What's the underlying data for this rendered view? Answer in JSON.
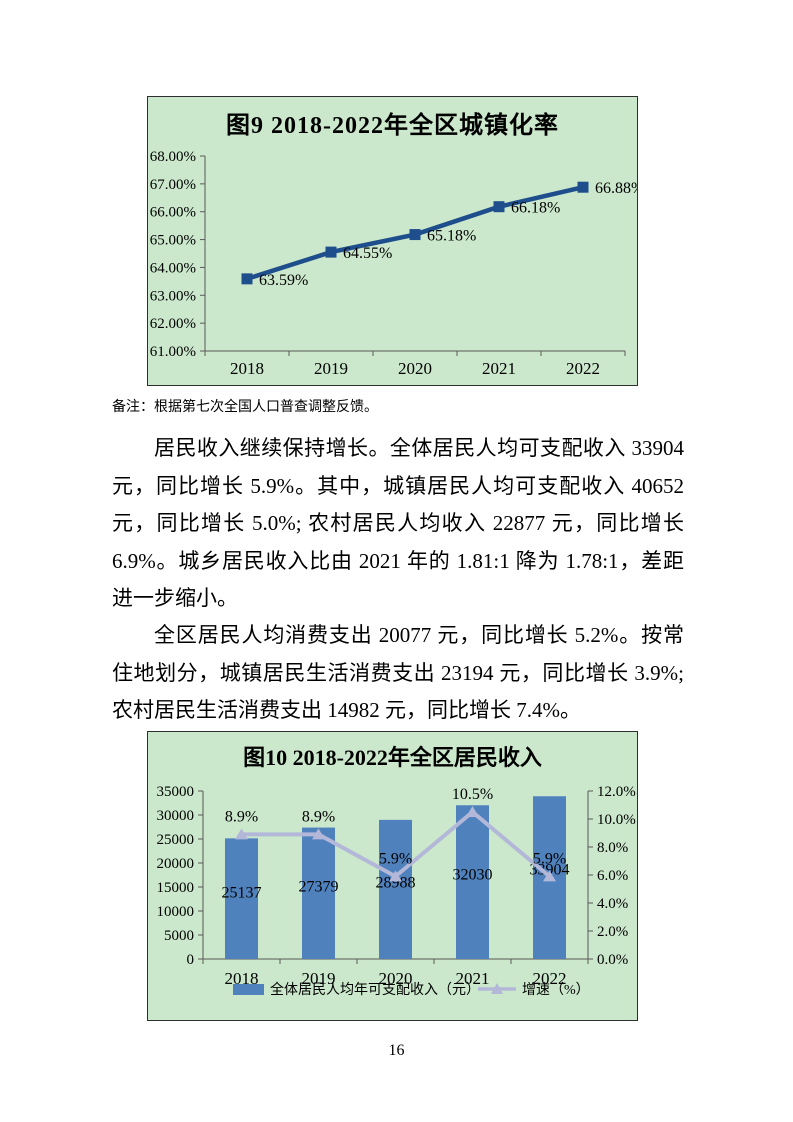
{
  "page": {
    "number": "16"
  },
  "note": "备注：根据第七次全国人口普查调整反馈。",
  "paragraphs": [
    "居民收入继续保持增长。全体居民人均可支配收入 33904 元，同比增长 5.9%。其中，城镇居民人均可支配收入 40652 元，同比增长 5.0%; 农村居民人均收入 22877 元，同比增长 6.9%。城乡居民收入比由 2021 年的 1.81:1 降为 1.78:1，差距进一步缩小。",
    "全区居民人均消费支出 20077 元，同比增长 5.2%。按常住地划分，城镇居民生活消费支出 23194 元，同比增长 3.9%; 农村居民生活消费支出 14982 元，同比增长 7.4%。"
  ],
  "chart_data": [
    {
      "type": "line",
      "title": "图9  2018-2022年全区城镇化率",
      "categories": [
        "2018",
        "2019",
        "2020",
        "2021",
        "2022"
      ],
      "series": [
        {
          "name": "城镇化率",
          "values": [
            63.59,
            64.55,
            65.18,
            66.18,
            66.88
          ],
          "labels": [
            "63.59%",
            "64.55%",
            "65.18%",
            "66.18%",
            "66.88%"
          ]
        }
      ],
      "ylim": [
        61,
        68
      ],
      "ytick_labels": [
        "61.00%",
        "62.00%",
        "63.00%",
        "64.00%",
        "65.00%",
        "66.00%",
        "67.00%",
        "68.00%"
      ],
      "grid": false,
      "legend_position": "none",
      "colors": {
        "line": "#1f4e8c",
        "background": "#cbe8cc",
        "axis": "#595959"
      }
    },
    {
      "type": "bar",
      "title": "图10 2018-2022年全区居民收入",
      "categories": [
        "2018",
        "2019",
        "2020",
        "2021",
        "2022"
      ],
      "series": [
        {
          "name": "全体居民人均年可支配收入（元）",
          "kind": "bar",
          "axis": "left",
          "values": [
            25137,
            27379,
            28988,
            32030,
            33904
          ],
          "labels": [
            "25137",
            "27379",
            "28988",
            "32030",
            "33904"
          ],
          "color": "#4f81bd"
        },
        {
          "name": "增速（%）",
          "kind": "line",
          "axis": "right",
          "values": [
            8.9,
            8.9,
            5.9,
            10.5,
            5.9
          ],
          "labels": [
            "8.9%",
            "8.9%",
            "5.9%",
            "10.5%",
            "5.9%"
          ],
          "color": "#b3b7d8"
        }
      ],
      "left_ylim": [
        0,
        35000
      ],
      "left_tick_labels": [
        "0",
        "5000",
        "10000",
        "15000",
        "20000",
        "25000",
        "30000",
        "35000"
      ],
      "right_ylim": [
        0,
        12
      ],
      "right_tick_labels": [
        "0.0%",
        "2.0%",
        "4.0%",
        "6.0%",
        "8.0%",
        "10.0%",
        "12.0%"
      ],
      "grid": false,
      "legend_position": "bottom",
      "legend": [
        "全体居民人均年可支配收入（元）",
        "增速（%）"
      ],
      "colors": {
        "bar": "#4f81bd",
        "line": "#b3b7d8",
        "background": "#cbe8cc",
        "axis": "#595959"
      }
    }
  ]
}
